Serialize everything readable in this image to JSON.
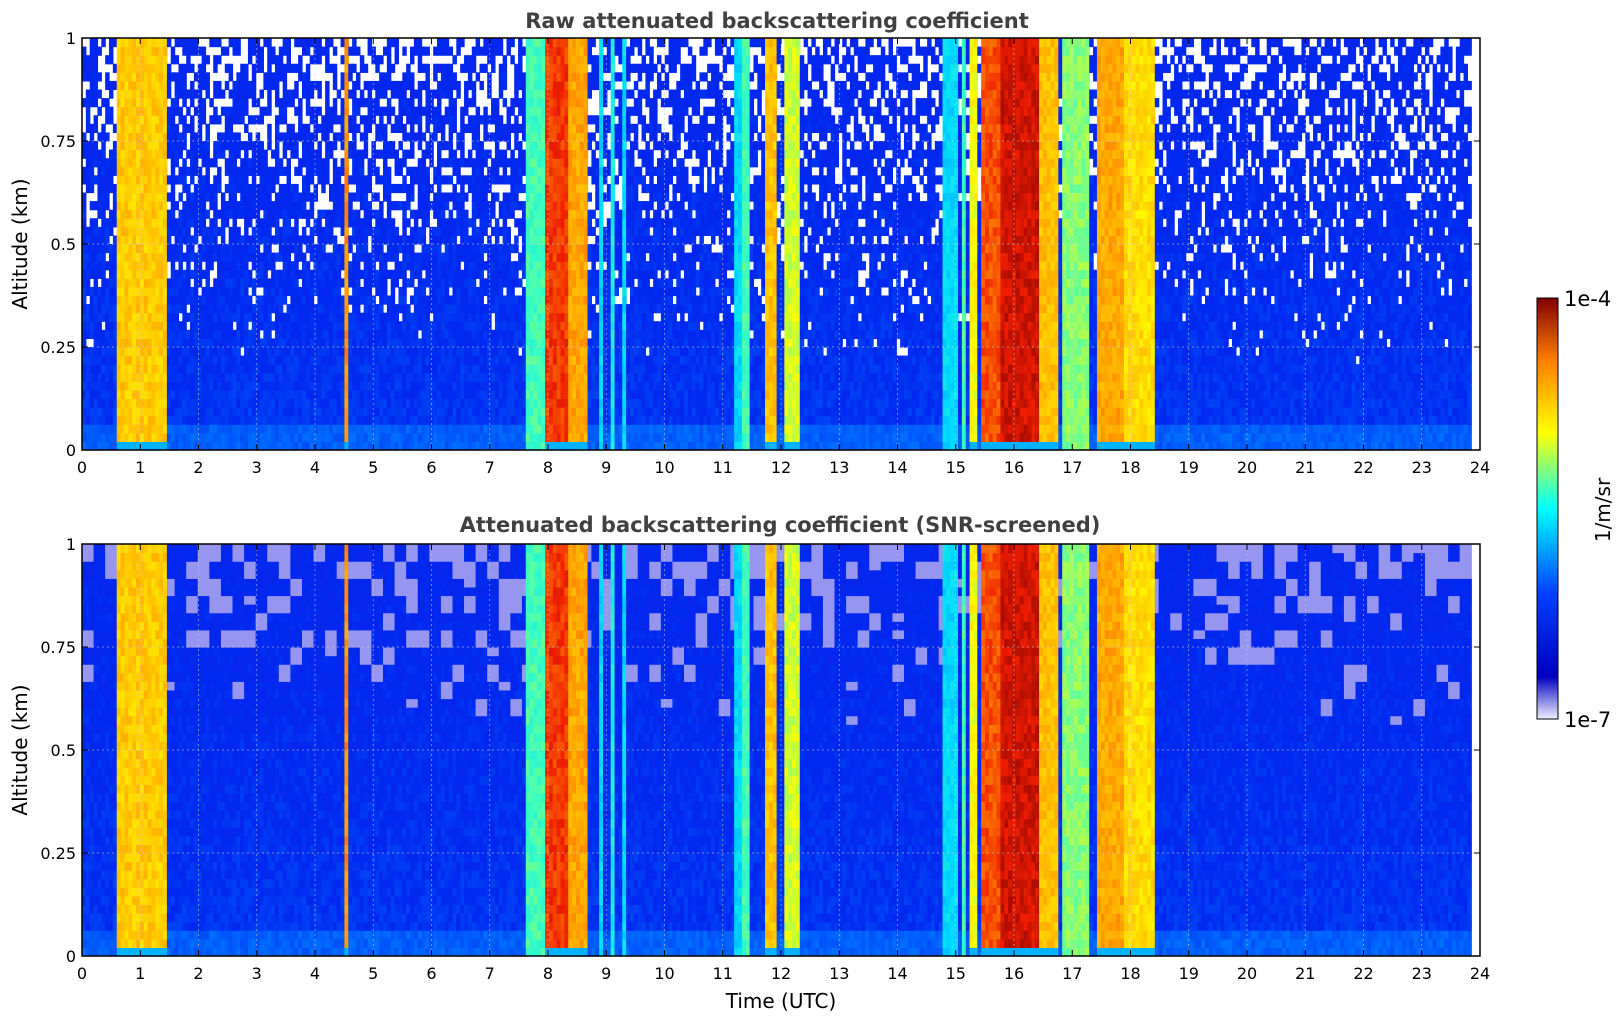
{
  "chart_data": [
    {
      "type": "heatmap",
      "title": "Raw attenuated backscattering coefficient",
      "xlabel": "",
      "ylabel": "Altitude (km)",
      "xlim": [
        0,
        24
      ],
      "ylim": [
        0,
        1
      ],
      "x_ticks": [
        "0",
        "1",
        "2",
        "3",
        "4",
        "5",
        "6",
        "7",
        "8",
        "9",
        "10",
        "11",
        "12",
        "13",
        "14",
        "15",
        "16",
        "17",
        "18",
        "19",
        "20",
        "21",
        "22",
        "23",
        "24"
      ],
      "y_ticks": [
        "0",
        "0.25",
        "0.5",
        "0.75",
        "1"
      ],
      "grid": true,
      "colorscale": "jet",
      "log_color": true,
      "noise_pattern": "speckle",
      "data_end_hour": 23.85,
      "cloud_features": [
        {
          "start": 0.6,
          "end": 1.45,
          "intensity": 0.74
        },
        {
          "start": 4.48,
          "end": 4.55,
          "intensity": 0.8
        },
        {
          "start": 7.65,
          "end": 7.95,
          "intensity": 0.55
        },
        {
          "start": 7.95,
          "end": 8.35,
          "intensity": 0.88
        },
        {
          "start": 8.35,
          "end": 8.7,
          "intensity": 0.78
        },
        {
          "start": 8.85,
          "end": 8.95,
          "intensity": 0.45
        },
        {
          "start": 9.05,
          "end": 9.15,
          "intensity": 0.5
        },
        {
          "start": 9.25,
          "end": 9.35,
          "intensity": 0.45
        },
        {
          "start": 11.2,
          "end": 11.3,
          "intensity": 0.45
        },
        {
          "start": 11.35,
          "end": 11.45,
          "intensity": 0.55
        },
        {
          "start": 11.75,
          "end": 11.95,
          "intensity": 0.75
        },
        {
          "start": 12.05,
          "end": 12.3,
          "intensity": 0.65
        },
        {
          "start": 14.8,
          "end": 15.05,
          "intensity": 0.45
        },
        {
          "start": 15.1,
          "end": 15.2,
          "intensity": 0.55
        },
        {
          "start": 15.25,
          "end": 15.4,
          "intensity": 0.68
        },
        {
          "start": 15.45,
          "end": 15.75,
          "intensity": 0.86
        },
        {
          "start": 15.8,
          "end": 16.4,
          "intensity": 0.93
        },
        {
          "start": 16.45,
          "end": 16.75,
          "intensity": 0.75
        },
        {
          "start": 16.8,
          "end": 17.3,
          "intensity": 0.6
        },
        {
          "start": 17.4,
          "end": 17.9,
          "intensity": 0.78
        },
        {
          "start": 17.9,
          "end": 18.45,
          "intensity": 0.72
        }
      ]
    },
    {
      "type": "heatmap",
      "title": "Attenuated backscattering coefficient (SNR-screened)",
      "xlabel": "Time (UTC)",
      "ylabel": "Altitude (km)",
      "xlim": [
        0,
        24
      ],
      "ylim": [
        0,
        1
      ],
      "x_ticks": [
        "0",
        "1",
        "2",
        "3",
        "4",
        "5",
        "6",
        "7",
        "8",
        "9",
        "10",
        "11",
        "12",
        "13",
        "14",
        "15",
        "16",
        "17",
        "18",
        "19",
        "20",
        "21",
        "22",
        "23",
        "24"
      ],
      "y_ticks": [
        "0",
        "0.25",
        "0.5",
        "0.75",
        "1"
      ],
      "grid": true,
      "colorscale": "jet",
      "log_color": true,
      "noise_pattern": "smoothed-patchy",
      "data_end_hour": 23.85,
      "cloud_features": [
        {
          "start": 0.6,
          "end": 1.45,
          "intensity": 0.74
        },
        {
          "start": 4.48,
          "end": 4.55,
          "intensity": 0.8
        },
        {
          "start": 7.65,
          "end": 7.95,
          "intensity": 0.55
        },
        {
          "start": 7.95,
          "end": 8.35,
          "intensity": 0.88
        },
        {
          "start": 8.35,
          "end": 8.7,
          "intensity": 0.78
        },
        {
          "start": 8.85,
          "end": 8.95,
          "intensity": 0.45
        },
        {
          "start": 9.05,
          "end": 9.15,
          "intensity": 0.5
        },
        {
          "start": 9.25,
          "end": 9.35,
          "intensity": 0.45
        },
        {
          "start": 11.2,
          "end": 11.3,
          "intensity": 0.45
        },
        {
          "start": 11.35,
          "end": 11.45,
          "intensity": 0.55
        },
        {
          "start": 11.75,
          "end": 11.95,
          "intensity": 0.75
        },
        {
          "start": 12.05,
          "end": 12.3,
          "intensity": 0.65
        },
        {
          "start": 14.8,
          "end": 15.05,
          "intensity": 0.45
        },
        {
          "start": 15.1,
          "end": 15.2,
          "intensity": 0.55
        },
        {
          "start": 15.25,
          "end": 15.4,
          "intensity": 0.68
        },
        {
          "start": 15.45,
          "end": 15.75,
          "intensity": 0.86
        },
        {
          "start": 15.8,
          "end": 16.4,
          "intensity": 0.93
        },
        {
          "start": 16.45,
          "end": 16.75,
          "intensity": 0.75
        },
        {
          "start": 16.8,
          "end": 17.3,
          "intensity": 0.6
        },
        {
          "start": 17.4,
          "end": 17.9,
          "intensity": 0.78
        },
        {
          "start": 17.9,
          "end": 18.45,
          "intensity": 0.72
        }
      ]
    }
  ],
  "colorbar": {
    "label": "1/m/sr",
    "max_label": "1e-4",
    "min_label": "1e-7",
    "colors": [
      "#f0f0ff",
      "#0000c0",
      "#0040ff",
      "#00ffff",
      "#ffff00",
      "#ff8000",
      "#800000"
    ]
  }
}
